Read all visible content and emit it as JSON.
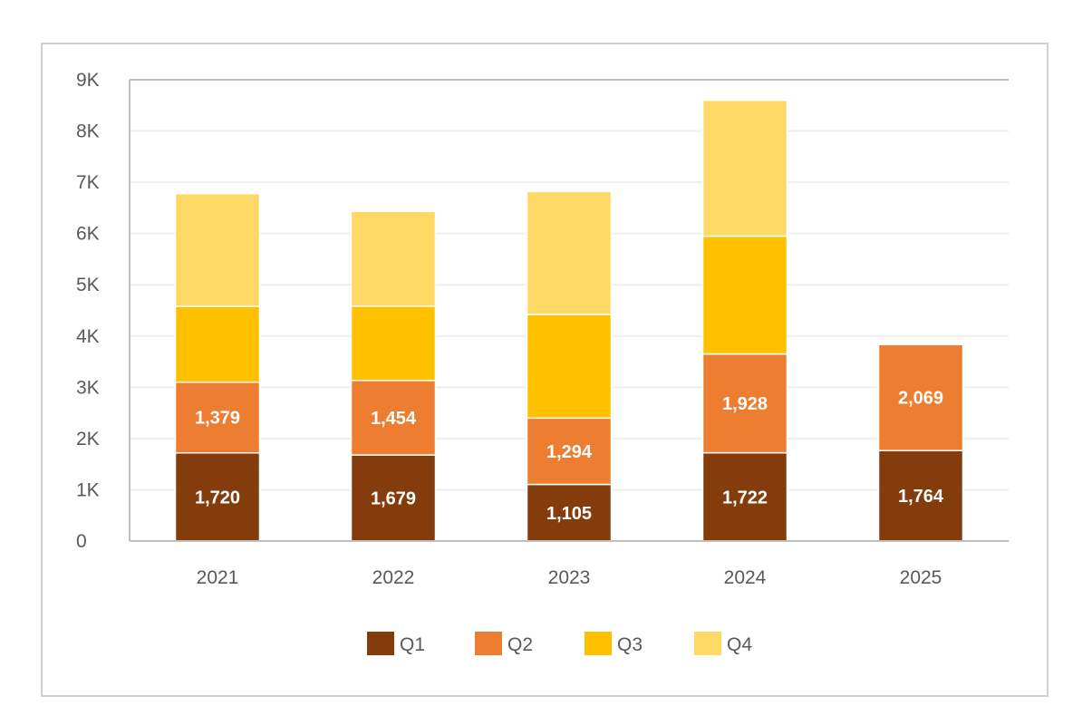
{
  "chart_data": {
    "type": "bar",
    "stacked": true,
    "title": "",
    "xlabel": "",
    "ylabel": "",
    "categories": [
      "2021",
      "2022",
      "2023",
      "2024",
      "2025"
    ],
    "ylim": [
      0,
      9000
    ],
    "yticks": [
      0,
      1000,
      2000,
      3000,
      4000,
      5000,
      6000,
      7000,
      8000,
      9000
    ],
    "ytick_labels": [
      "0",
      "1K",
      "2K",
      "3K",
      "4K",
      "5K",
      "6K",
      "7K",
      "8K",
      "9K"
    ],
    "grid": true,
    "legend_position": "bottom",
    "series": [
      {
        "name": "Q1",
        "color": "#843C0C",
        "values": [
          1720,
          1679,
          1105,
          1722,
          1764
        ],
        "data_labels": [
          "1,720",
          "1,679",
          "1,105",
          "1,722",
          "1,764"
        ]
      },
      {
        "name": "Q2",
        "color": "#ED7D31",
        "values": [
          1379,
          1454,
          1294,
          1928,
          2069
        ],
        "data_labels": [
          "1,379",
          "1,454",
          "1,294",
          "1,928",
          "2,069"
        ]
      },
      {
        "name": "Q3",
        "color": "#FFC000",
        "values": [
          1480,
          1450,
          2020,
          2300,
          0
        ],
        "data_labels": [
          "",
          "",
          "",
          "",
          ""
        ]
      },
      {
        "name": "Q4",
        "color": "#FFD966",
        "values": [
          2200,
          1850,
          2400,
          2650,
          0
        ],
        "data_labels": [
          "",
          "",
          "",
          "",
          ""
        ]
      }
    ]
  }
}
